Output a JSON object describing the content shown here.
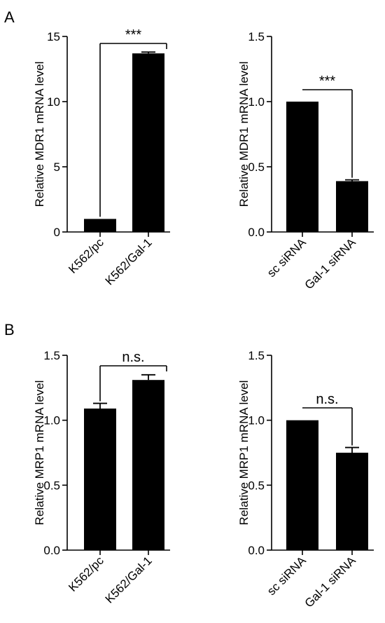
{
  "panels": [
    {
      "letter": "A"
    },
    {
      "letter": "B"
    }
  ],
  "colors": {
    "bar": "#000000",
    "axis": "#000000"
  },
  "chart_data": [
    {
      "type": "bar",
      "panel": "A",
      "categories": [
        "K562/pc",
        "K562/Gal-1"
      ],
      "values": [
        1.0,
        13.7
      ],
      "errors": [
        0.0,
        0.1
      ],
      "ylabel": "Relative MDR1 mRNA level",
      "ylim": [
        0,
        15
      ],
      "yticks": [
        0,
        5,
        10,
        15
      ],
      "yticklabels": [
        "0",
        "5",
        "10",
        "15"
      ],
      "significance": "***",
      "grid": false
    },
    {
      "type": "bar",
      "panel": "A",
      "categories": [
        "sc siRNA",
        "Gal-1 siRNA"
      ],
      "values": [
        1.0,
        0.39
      ],
      "errors": [
        0.0,
        0.01
      ],
      "ylabel": "Relative MDR1 mRNA level",
      "ylim": [
        0,
        1.5
      ],
      "yticks": [
        0,
        0.5,
        1.0,
        1.5
      ],
      "yticklabels": [
        "0.0",
        "0.5",
        "1.0",
        "1.5"
      ],
      "significance": "***",
      "grid": false
    },
    {
      "type": "bar",
      "panel": "B",
      "categories": [
        "K562/pc",
        "K562/Gal-1"
      ],
      "values": [
        1.09,
        1.31
      ],
      "errors": [
        0.04,
        0.04
      ],
      "ylabel": "Relative MRP1 mRNA level",
      "ylim": [
        0,
        1.5
      ],
      "yticks": [
        0,
        0.5,
        1.0,
        1.5
      ],
      "yticklabels": [
        "0.0",
        "0.5",
        "1.0",
        "1.5"
      ],
      "significance": "n.s.",
      "grid": false
    },
    {
      "type": "bar",
      "panel": "B",
      "categories": [
        "sc siRNA",
        "Gal-1 siRNA"
      ],
      "values": [
        1.0,
        0.75
      ],
      "errors": [
        0.0,
        0.04
      ],
      "ylabel": "Relative MRP1 mRNA level",
      "ylim": [
        0,
        1.5
      ],
      "yticks": [
        0,
        0.5,
        1.0,
        1.5
      ],
      "yticklabels": [
        "0.0",
        "0.5",
        "1.0",
        "1.5"
      ],
      "significance": "n.s.",
      "grid": false
    }
  ]
}
